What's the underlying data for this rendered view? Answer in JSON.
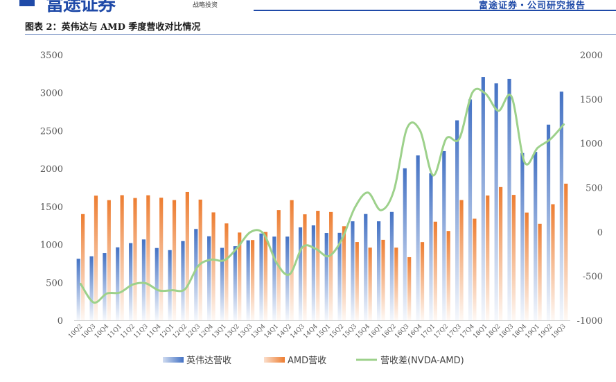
{
  "header": {
    "logo_text": "富途证券",
    "logo_sub": "战略投资",
    "report_tag": "富途证券・公司研究报告"
  },
  "caption": "图表 2：英伟达与 AMD 季度营收对比情况",
  "colors": {
    "nvda": "#4472c4",
    "amd": "#ed7d31",
    "diff": "#9dd18b",
    "brand": "#1f4aa8"
  },
  "chart_data": {
    "type": "bar",
    "title": "",
    "categories": [
      "10Q2",
      "10Q3",
      "10Q4",
      "11Q1",
      "11Q2",
      "11Q3",
      "11Q4",
      "12Q1",
      "12Q2",
      "12Q3",
      "12Q4",
      "13Q1",
      "13Q2",
      "13Q3",
      "13Q4",
      "14Q1",
      "14Q2",
      "14Q3",
      "14Q4",
      "15Q1",
      "15Q2",
      "15Q3",
      "15Q4",
      "16Q1",
      "16Q2",
      "16Q3",
      "16Q4",
      "17Q1",
      "17Q2",
      "17Q3",
      "17Q4",
      "18Q1",
      "18Q2",
      "18Q3",
      "18Q4",
      "19Q1",
      "19Q2",
      "19Q3"
    ],
    "series": [
      {
        "name": "英伟达营收",
        "axis": "left",
        "type": "bar",
        "values": [
          811,
          844,
          886,
          962,
          1017,
          1066,
          953,
          925,
          1044,
          1204,
          1107,
          955,
          977,
          1054,
          1144,
          1103,
          1103,
          1225,
          1251,
          1151,
          1153,
          1305,
          1401,
          1305,
          1428,
          2004,
          2173,
          1937,
          2230,
          2636,
          2911,
          3207,
          3123,
          3181,
          2205,
          2220,
          2579,
          3014
        ]
      },
      {
        "name": "AMD营收",
        "axis": "left",
        "type": "bar",
        "values": [
          1400,
          1643,
          1584,
          1649,
          1612,
          1648,
          1616,
          1585,
          1691,
          1591,
          1422,
          1277,
          1157,
          1058,
          1164,
          1452,
          1584,
          1397,
          1443,
          1427,
          1240,
          1032,
          958,
          1061,
          958,
          832,
          1031,
          1300,
          1177,
          1585,
          1339,
          1645,
          1756,
          1653,
          1420,
          1272,
          1530,
          1801
        ]
      },
      {
        "name": "营收差(NVDA-AMD)",
        "axis": "right",
        "type": "line",
        "values": [
          -589,
          -799,
          -698,
          -687,
          -595,
          -582,
          -663,
          -660,
          -647,
          -387,
          -315,
          -322,
          -180,
          -4,
          -20,
          -349,
          -481,
          -172,
          -192,
          -276,
          -87,
          273,
          443,
          244,
          470,
          1172,
          1142,
          637,
          1053,
          1051,
          1572,
          1562,
          1367,
          1528,
          785,
          948,
          1049,
          1213
        ]
      }
    ],
    "ylim_left": [
      0,
      3500
    ],
    "yticks_left": [
      "3500",
      "3000",
      "2500",
      "2000",
      "1500",
      "1000",
      "500",
      "0"
    ],
    "ylim_right": [
      -1000,
      2000
    ],
    "yticks_right": [
      "2000",
      "1500",
      "1000",
      "500",
      "0",
      "-500",
      "-1000"
    ],
    "legend_position": "bottom",
    "grid": false
  }
}
